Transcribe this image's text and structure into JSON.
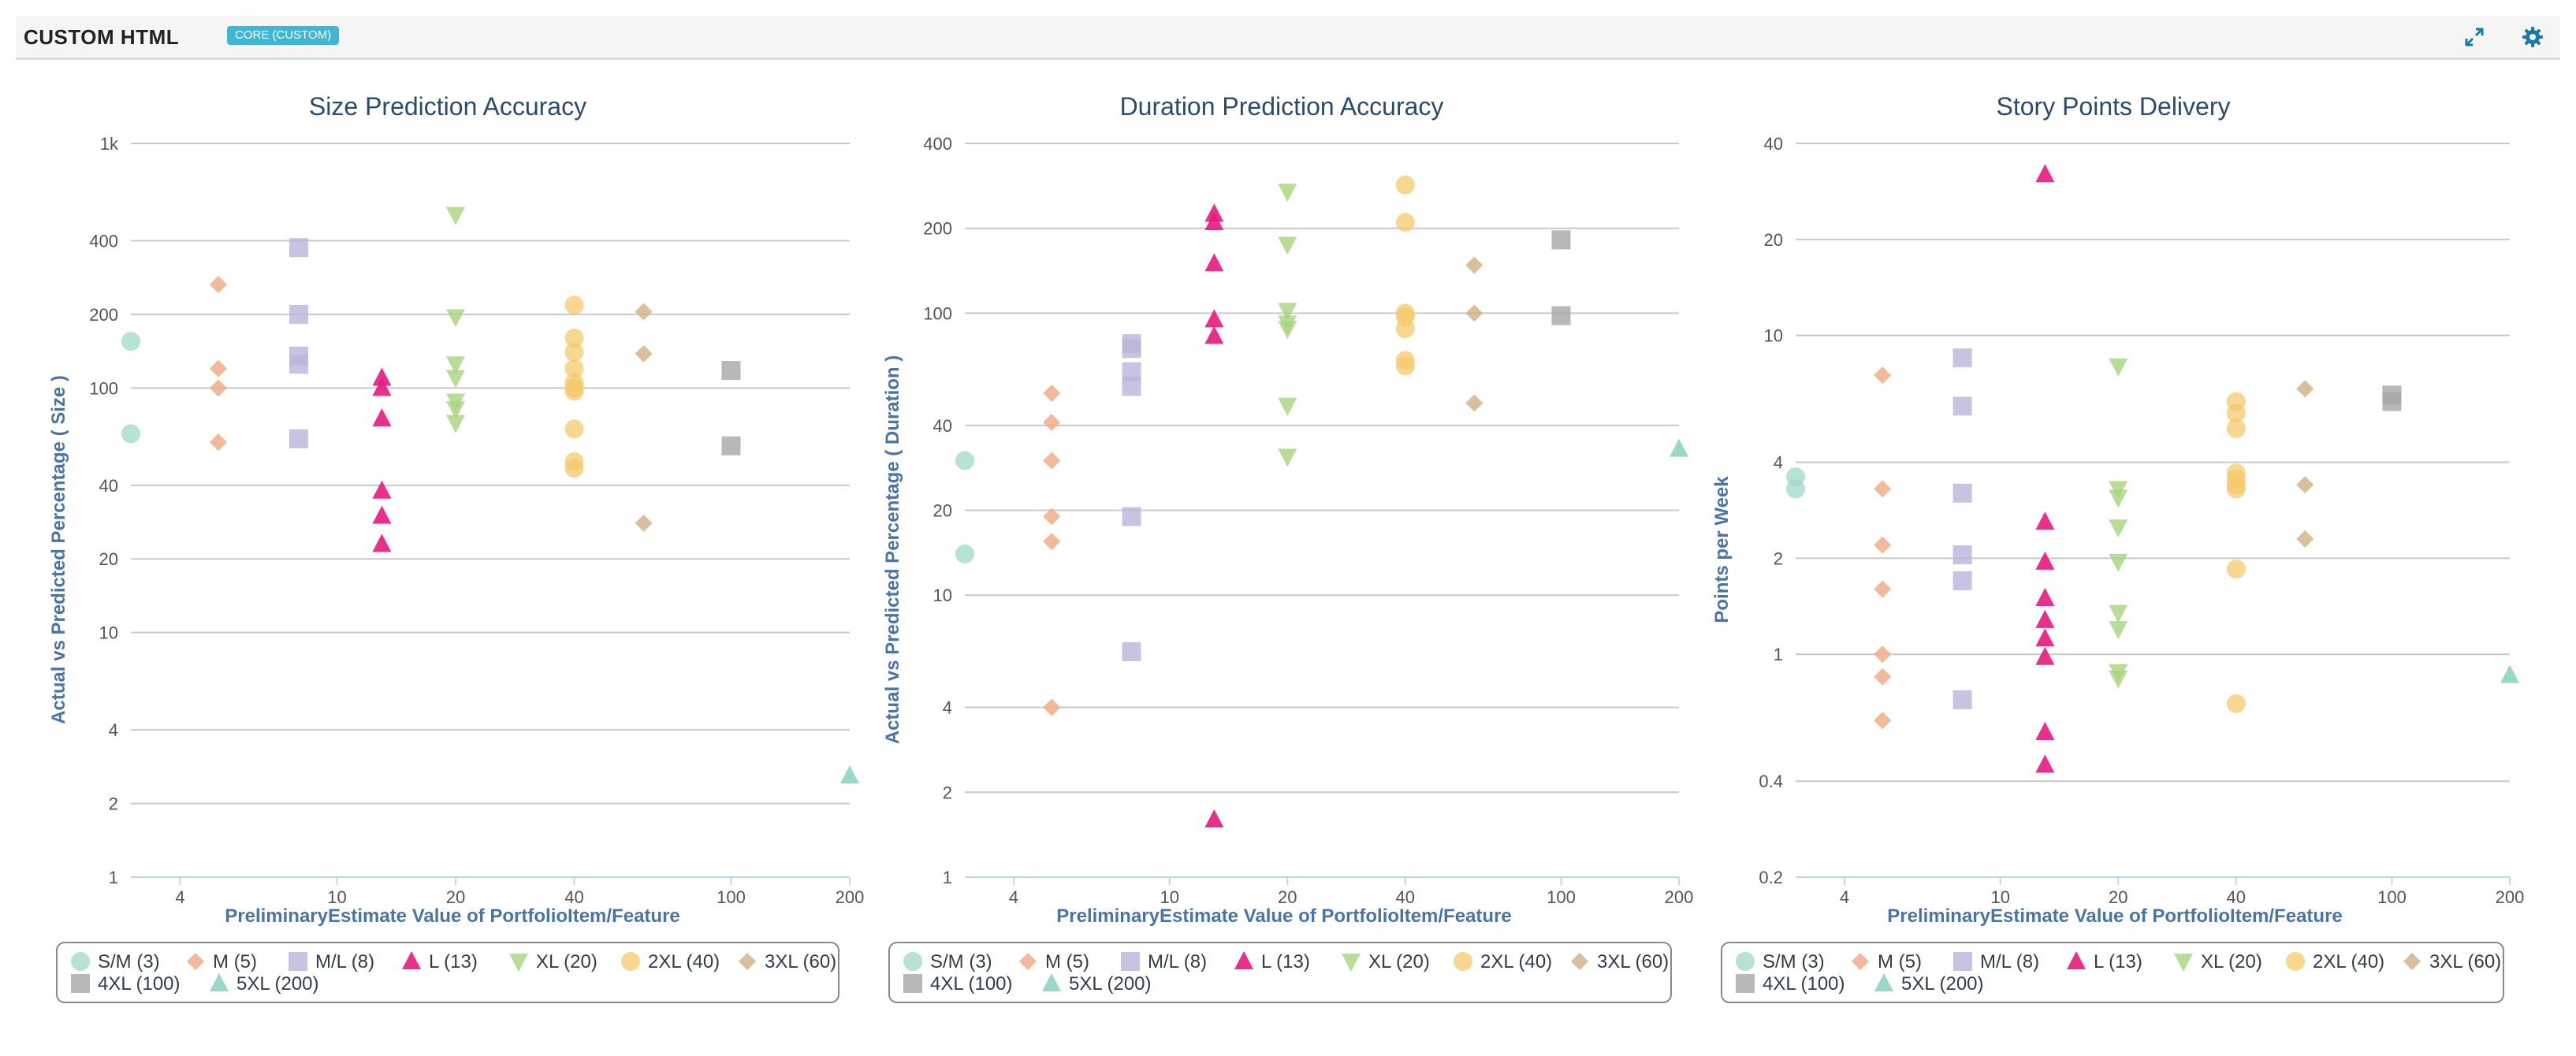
{
  "header": {
    "title": "CUSTOM HTML",
    "badge": "CORE (CUSTOM)",
    "expand_icon": "expand-icon",
    "settings_icon": "gear-icon"
  },
  "chart_data": [
    {
      "type": "scatter",
      "title": "Size Prediction Accuracy",
      "xlabel": "PreliminaryEstimate Value of PortfolioItem/Feature",
      "ylabel": "Actual vs Predicted Percentage ( Size )",
      "x_scale": "log",
      "y_scale": "log",
      "xlim": [
        3,
        200
      ],
      "ylim": [
        1,
        1000
      ],
      "x_ticks": [
        {
          "v": 4,
          "label": "4"
        },
        {
          "v": 10,
          "label": "10"
        },
        {
          "v": 20,
          "label": "20"
        },
        {
          "v": 40,
          "label": "40"
        },
        {
          "v": 100,
          "label": "100"
        },
        {
          "v": 200,
          "label": "200"
        }
      ],
      "y_ticks": [
        {
          "v": 1,
          "label": "1"
        },
        {
          "v": 2,
          "label": "2"
        },
        {
          "v": 4,
          "label": "4"
        },
        {
          "v": 10,
          "label": "10"
        },
        {
          "v": 20,
          "label": "20"
        },
        {
          "v": 40,
          "label": "40"
        },
        {
          "v": 100,
          "label": "100"
        },
        {
          "v": 200,
          "label": "200"
        },
        {
          "v": 400,
          "label": "400"
        },
        {
          "v": 1000,
          "label": "1k"
        }
      ],
      "grid": true,
      "legend_position": "bottom",
      "series": [
        {
          "name": "S/M (3)",
          "points": [
            [
              3,
              155
            ],
            [
              3,
              65
            ]
          ]
        },
        {
          "name": "M (5)",
          "points": [
            [
              5,
              265
            ],
            [
              5,
              120
            ],
            [
              5,
              100
            ],
            [
              5,
              60
            ]
          ]
        },
        {
          "name": "M/L (8)",
          "points": [
            [
              8,
              375
            ],
            [
              8,
              200
            ],
            [
              8,
              135
            ],
            [
              8,
              125
            ],
            [
              8,
              62
            ]
          ]
        },
        {
          "name": "L (13)",
          "points": [
            [
              13,
              110
            ],
            [
              13,
              100
            ],
            [
              13,
              75
            ],
            [
              13,
              38
            ],
            [
              13,
              30
            ],
            [
              13,
              23
            ]
          ]
        },
        {
          "name": "XL (20)",
          "points": [
            [
              20,
              510
            ],
            [
              20,
              195
            ],
            [
              20,
              125
            ],
            [
              20,
              110
            ],
            [
              20,
              88
            ],
            [
              20,
              82
            ],
            [
              20,
              72
            ]
          ]
        },
        {
          "name": "2XL (40)",
          "points": [
            [
              40,
              218
            ],
            [
              40,
              160
            ],
            [
              40,
              140
            ],
            [
              40,
              120
            ],
            [
              40,
              105
            ],
            [
              40,
              100
            ],
            [
              40,
              97
            ],
            [
              40,
              68
            ],
            [
              40,
              50
            ],
            [
              40,
              47
            ]
          ]
        },
        {
          "name": "3XL (60)",
          "points": [
            [
              60,
              205
            ],
            [
              60,
              138
            ],
            [
              60,
              28
            ]
          ]
        },
        {
          "name": "4XL (100)",
          "points": [
            [
              100,
              118
            ],
            [
              100,
              58
            ]
          ]
        },
        {
          "name": "5XL (200)",
          "points": [
            [
              200,
              2.6
            ]
          ]
        }
      ]
    },
    {
      "type": "scatter",
      "title": "Duration Prediction Accuracy",
      "xlabel": "PreliminaryEstimate Value of PortfolioItem/Feature",
      "ylabel": "Actual vs Predicted Percentage ( Duration )",
      "x_scale": "log",
      "y_scale": "log",
      "xlim": [
        3,
        200
      ],
      "ylim": [
        1,
        400
      ],
      "x_ticks": [
        {
          "v": 4,
          "label": "4"
        },
        {
          "v": 10,
          "label": "10"
        },
        {
          "v": 20,
          "label": "20"
        },
        {
          "v": 40,
          "label": "40"
        },
        {
          "v": 100,
          "label": "100"
        },
        {
          "v": 200,
          "label": "200"
        }
      ],
      "y_ticks": [
        {
          "v": 1,
          "label": "1"
        },
        {
          "v": 2,
          "label": "2"
        },
        {
          "v": 4,
          "label": "4"
        },
        {
          "v": 10,
          "label": "10"
        },
        {
          "v": 20,
          "label": "20"
        },
        {
          "v": 40,
          "label": "40"
        },
        {
          "v": 100,
          "label": "100"
        },
        {
          "v": 200,
          "label": "200"
        },
        {
          "v": 400,
          "label": "400"
        }
      ],
      "grid": true,
      "legend_position": "bottom",
      "series": [
        {
          "name": "S/M (3)",
          "points": [
            [
              3,
              30
            ],
            [
              3,
              14
            ]
          ]
        },
        {
          "name": "M (5)",
          "points": [
            [
              5,
              52
            ],
            [
              5,
              41
            ],
            [
              5,
              30
            ],
            [
              5,
              19
            ],
            [
              5,
              15.5
            ],
            [
              5,
              4
            ]
          ]
        },
        {
          "name": "M/L (8)",
          "points": [
            [
              8,
              78
            ],
            [
              8,
              75
            ],
            [
              8,
              62
            ],
            [
              8,
              55
            ],
            [
              8,
              19
            ],
            [
              8,
              6.3
            ]
          ]
        },
        {
          "name": "L (13)",
          "points": [
            [
              13,
              225
            ],
            [
              13,
              210
            ],
            [
              13,
              150
            ],
            [
              13,
              95
            ],
            [
              13,
              83
            ],
            [
              13,
              1.6
            ]
          ]
        },
        {
          "name": "XL (20)",
          "points": [
            [
              20,
              270
            ],
            [
              20,
              175
            ],
            [
              20,
              102
            ],
            [
              20,
              92
            ],
            [
              20,
              88
            ],
            [
              20,
              47
            ],
            [
              20,
              31
            ]
          ]
        },
        {
          "name": "2XL (40)",
          "points": [
            [
              40,
              285
            ],
            [
              40,
              210
            ],
            [
              40,
              100
            ],
            [
              40,
              97
            ],
            [
              40,
              88
            ],
            [
              40,
              68
            ],
            [
              40,
              65
            ]
          ]
        },
        {
          "name": "3XL (60)",
          "points": [
            [
              60,
              148
            ],
            [
              60,
              100
            ],
            [
              60,
              48
            ]
          ]
        },
        {
          "name": "4XL (100)",
          "points": [
            [
              100,
              182
            ],
            [
              100,
              98
            ]
          ]
        },
        {
          "name": "5XL (200)",
          "points": [
            [
              200,
              33
            ]
          ]
        }
      ]
    },
    {
      "type": "scatter",
      "title": "Story Points Delivery",
      "xlabel": "PreliminaryEstimate Value of PortfolioItem/Feature",
      "ylabel": "Points per Week",
      "x_scale": "log",
      "y_scale": "log",
      "xlim": [
        3,
        200
      ],
      "ylim": [
        0.2,
        40
      ],
      "x_ticks": [
        {
          "v": 4,
          "label": "4"
        },
        {
          "v": 10,
          "label": "10"
        },
        {
          "v": 20,
          "label": "20"
        },
        {
          "v": 40,
          "label": "40"
        },
        {
          "v": 100,
          "label": "100"
        },
        {
          "v": 200,
          "label": "200"
        }
      ],
      "y_ticks": [
        {
          "v": 0.2,
          "label": "0.2"
        },
        {
          "v": 0.4,
          "label": "0.4"
        },
        {
          "v": 1,
          "label": "1"
        },
        {
          "v": 2,
          "label": "2"
        },
        {
          "v": 4,
          "label": "4"
        },
        {
          "v": 10,
          "label": "10"
        },
        {
          "v": 20,
          "label": "20"
        },
        {
          "v": 40,
          "label": "40"
        }
      ],
      "grid": true,
      "legend_position": "bottom",
      "series": [
        {
          "name": "S/M (3)",
          "points": [
            [
              3,
              3.6
            ],
            [
              3,
              3.3
            ]
          ]
        },
        {
          "name": "M (5)",
          "points": [
            [
              5,
              7.5
            ],
            [
              5,
              3.3
            ],
            [
              5,
              2.2
            ],
            [
              5,
              1.6
            ],
            [
              5,
              1.0
            ],
            [
              5,
              0.85
            ],
            [
              5,
              0.62
            ]
          ]
        },
        {
          "name": "M/L (8)",
          "points": [
            [
              8,
              8.5
            ],
            [
              8,
              6.0
            ],
            [
              8,
              3.2
            ],
            [
              8,
              2.05
            ],
            [
              8,
              1.7
            ],
            [
              8,
              0.72
            ]
          ]
        },
        {
          "name": "L (13)",
          "points": [
            [
              13,
              32
            ],
            [
              13,
              2.6
            ],
            [
              13,
              1.95
            ],
            [
              13,
              1.5
            ],
            [
              13,
              1.28
            ],
            [
              13,
              1.12
            ],
            [
              13,
              0.98
            ],
            [
              13,
              0.57
            ],
            [
              13,
              0.45
            ]
          ]
        },
        {
          "name": "XL (20)",
          "points": [
            [
              20,
              8.0
            ],
            [
              20,
              3.3
            ],
            [
              20,
              3.1
            ],
            [
              20,
              2.5
            ],
            [
              20,
              1.95
            ],
            [
              20,
              1.35
            ],
            [
              20,
              1.2
            ],
            [
              20,
              0.88
            ],
            [
              20,
              0.84
            ]
          ]
        },
        {
          "name": "2XL (40)",
          "points": [
            [
              40,
              6.2
            ],
            [
              40,
              5.7
            ],
            [
              40,
              5.1
            ],
            [
              40,
              3.7
            ],
            [
              40,
              3.55
            ],
            [
              40,
              3.4
            ],
            [
              40,
              3.3
            ],
            [
              40,
              1.85
            ],
            [
              40,
              0.7
            ]
          ]
        },
        {
          "name": "3XL (60)",
          "points": [
            [
              60,
              6.8
            ],
            [
              60,
              3.4
            ],
            [
              60,
              2.3
            ]
          ]
        },
        {
          "name": "4XL (100)",
          "points": [
            [
              100,
              6.5
            ],
            [
              100,
              6.2
            ]
          ]
        },
        {
          "name": "5XL (200)",
          "points": [
            [
              200,
              0.86
            ]
          ]
        }
      ]
    }
  ],
  "series_styles": [
    {
      "symbol": "circle",
      "color": "#9fd8c8"
    },
    {
      "symbol": "diamond",
      "color": "#f0ad8a"
    },
    {
      "symbol": "square",
      "color": "#b8b5db"
    },
    {
      "symbol": "triangle",
      "color": "#e6197d"
    },
    {
      "symbol": "triangle-down",
      "color": "#a8d47e"
    },
    {
      "symbol": "circle",
      "color": "#f5c96b"
    },
    {
      "symbol": "diamond",
      "color": "#d4b48c"
    },
    {
      "symbol": "square",
      "color": "#a6a6a6"
    },
    {
      "symbol": "triangle",
      "color": "#8fd3c0"
    }
  ]
}
